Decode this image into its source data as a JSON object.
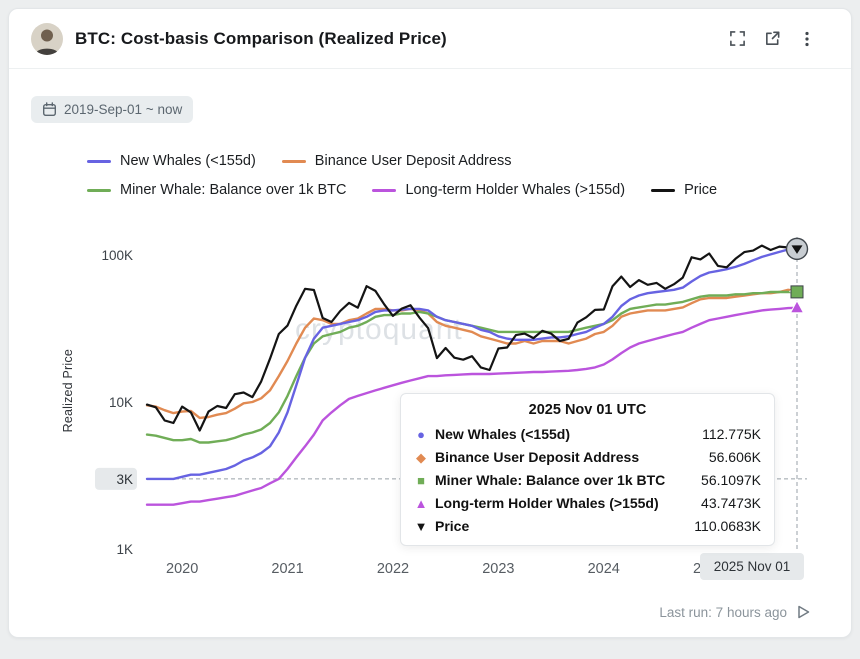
{
  "header": {
    "title": "BTC: Cost-basis Comparison (Realized Price)",
    "icons": {
      "fullscreen": "fullscreen-icon",
      "open_external": "open-external-icon",
      "menu": "kebab-menu-icon"
    }
  },
  "date_range": "2019-Sep-01 ~ now",
  "legend": [
    {
      "label": "New Whales (<155d)",
      "color": "#6763e2"
    },
    {
      "label": "Binance User Deposit Address",
      "color": "#e18a52"
    },
    {
      "label": "Miner Whale: Balance over 1k BTC",
      "color": "#70ad57"
    },
    {
      "label": "Long-term Holder Whales (>155d)",
      "color": "#bb54dd"
    },
    {
      "label": "Price",
      "color": "#141414"
    }
  ],
  "y_axis": {
    "label": "Realized Price",
    "ticks": [
      {
        "label": "100K",
        "value": 100
      },
      {
        "label": "10K",
        "value": 10
      },
      {
        "label": "1K",
        "value": 1
      }
    ],
    "pointer": {
      "label": "3K",
      "value": 3
    }
  },
  "x_axis": {
    "ticks": [
      {
        "label": "2020",
        "month_index": 4
      },
      {
        "label": "2021",
        "month_index": 16
      },
      {
        "label": "2022",
        "month_index": 28
      },
      {
        "label": "2023",
        "month_index": 40
      },
      {
        "label": "2024",
        "month_index": 52
      },
      {
        "label": "2025",
        "month_index": 64
      }
    ],
    "pointer": {
      "label": "2025 Nov 01",
      "month_index": 74
    }
  },
  "tooltip": {
    "title": "2025 Nov 01 UTC",
    "rows": [
      {
        "marker": "●",
        "color": "#6763e2",
        "label": "New Whales (<155d)",
        "value": "112.775K"
      },
      {
        "marker": "◆",
        "color": "#e18a52",
        "label": "Binance User Deposit Address",
        "value": "56.606K"
      },
      {
        "marker": "■",
        "color": "#70ad57",
        "label": "Miner Whale: Balance over 1k BTC",
        "value": "56.1097K"
      },
      {
        "marker": "▲",
        "color": "#bb54dd",
        "label": "Long-term Holder Whales (>155d)",
        "value": "43.7473K"
      },
      {
        "marker": "▼",
        "color": "#141414",
        "label": "Price",
        "value": "110.0683K"
      }
    ]
  },
  "watermark": "cryptoquant",
  "footer": {
    "last_run": "Last run: 7 hours ago"
  },
  "chart_data": {
    "type": "line",
    "title": "BTC: Cost-basis Comparison (Realized Price)",
    "ylabel": "Realized Price",
    "y_scale": "log",
    "y_unit": "thousand USD",
    "ylim_k": [
      1,
      130
    ],
    "x_start": "2019-09",
    "x_end": "2025-11",
    "x_interval": "month",
    "legend_position": "top",
    "grid": false,
    "series": [
      {
        "name": "New Whales (<155d)",
        "color": "#6763e2",
        "end_marker": "circle",
        "values": [
          3,
          3,
          3,
          3,
          3.1,
          3.2,
          3.2,
          3.3,
          3.4,
          3.5,
          3.7,
          4,
          4.2,
          4.5,
          5,
          6.2,
          8.5,
          13,
          20,
          27,
          32,
          33,
          34,
          35,
          36,
          38,
          41,
          42,
          42,
          42.5,
          43,
          43,
          42,
          38,
          36,
          35,
          34,
          33,
          31,
          30,
          28,
          27,
          26.5,
          26.5,
          26.5,
          27,
          27.5,
          27.5,
          28,
          29,
          30,
          32,
          34,
          38,
          45,
          50,
          53,
          55,
          56,
          57,
          58,
          60,
          66,
          72,
          76,
          78,
          80,
          83,
          87,
          92,
          97,
          101,
          105,
          109,
          112.775
        ]
      },
      {
        "name": "Binance User Deposit Address",
        "color": "#e18a52",
        "end_marker": "diamond",
        "values": [
          9.5,
          9.3,
          8.8,
          8.4,
          8.6,
          8.7,
          7.8,
          7.9,
          8.2,
          8.4,
          9,
          9.8,
          10,
          10.6,
          12,
          15,
          19,
          25,
          32,
          37,
          36,
          34,
          34,
          36,
          37,
          40,
          43,
          43,
          42,
          42,
          43,
          42,
          40,
          35,
          33,
          32,
          31,
          30,
          28,
          27,
          26,
          25,
          25,
          26,
          25,
          26,
          26,
          26,
          25,
          26,
          27,
          29,
          30,
          33,
          38,
          40,
          41,
          42,
          42,
          42,
          43,
          44,
          47,
          50,
          51,
          51,
          51,
          52,
          53,
          54,
          55,
          55,
          56,
          58,
          56.606
        ]
      },
      {
        "name": "Miner Whale: Balance over 1k BTC",
        "color": "#70ad57",
        "end_marker": "square",
        "values": [
          6,
          5.9,
          5.7,
          5.5,
          5.5,
          5.6,
          5.3,
          5.3,
          5.4,
          5.5,
          5.7,
          6,
          6.2,
          6.5,
          7.2,
          8.5,
          11,
          15,
          20,
          25,
          28,
          29,
          30,
          32,
          33,
          35,
          38,
          39,
          39,
          40,
          40,
          41,
          40,
          38,
          36,
          35,
          34,
          33,
          32,
          31,
          30,
          30,
          30,
          30,
          30,
          30,
          30,
          30,
          30,
          31,
          32,
          33,
          34,
          36,
          40,
          43,
          44,
          45,
          46,
          46,
          47,
          48,
          50,
          52,
          53,
          53,
          53,
          54,
          54,
          55,
          55,
          56,
          56,
          56,
          56.1097
        ]
      },
      {
        "name": "Long-term Holder Whales (>155d)",
        "color": "#bb54dd",
        "end_marker": "triangle-up",
        "values": [
          2,
          2,
          2,
          2,
          2.05,
          2.1,
          2.1,
          2.15,
          2.2,
          2.25,
          2.3,
          2.4,
          2.5,
          2.6,
          2.8,
          3,
          3.5,
          4.2,
          5,
          6,
          7.5,
          8.5,
          9.5,
          10.5,
          11,
          11.5,
          12,
          12.5,
          13,
          13.5,
          14,
          14.5,
          15,
          15,
          15.2,
          15.3,
          15.4,
          15.5,
          15.5,
          15.5,
          15.6,
          15.7,
          15.8,
          15.9,
          16,
          16,
          16.1,
          16.2,
          16.3,
          16.5,
          16.8,
          17.2,
          18,
          19.5,
          21.5,
          23.5,
          25,
          26,
          27,
          28,
          29,
          30,
          32,
          34,
          36,
          37,
          38,
          39,
          40,
          41,
          42,
          42.5,
          43,
          43.5,
          43.7473
        ]
      },
      {
        "name": "Price",
        "color": "#141414",
        "end_marker": "triangle-down-in-grey-circle",
        "values": [
          9.6,
          9.2,
          7.5,
          7.2,
          9.3,
          8.5,
          6.4,
          8.6,
          9.4,
          9.1,
          11.3,
          11.6,
          10.8,
          13.8,
          19.7,
          29,
          33.1,
          45.2,
          58.9,
          57.8,
          37.3,
          35,
          41.6,
          47.2,
          43.8,
          61.3,
          57,
          46.2,
          38.5,
          43.2,
          45.5,
          37.6,
          31.8,
          19.9,
          23.3,
          20,
          19.4,
          20.5,
          17.2,
          16.5,
          23.1,
          23.5,
          28.5,
          29.2,
          27.2,
          30.5,
          29.2,
          26,
          26.9,
          34.7,
          37.7,
          42.3,
          42.6,
          61.2,
          71.3,
          60.6,
          67.5,
          62.7,
          64.6,
          58.9,
          63.3,
          70.2,
          96.4,
          93.4,
          102.4,
          84.3,
          82.5,
          94.2,
          104.6,
          107.1,
          115.8,
          108.2,
          114,
          112.5,
          110.0683
        ]
      }
    ]
  }
}
